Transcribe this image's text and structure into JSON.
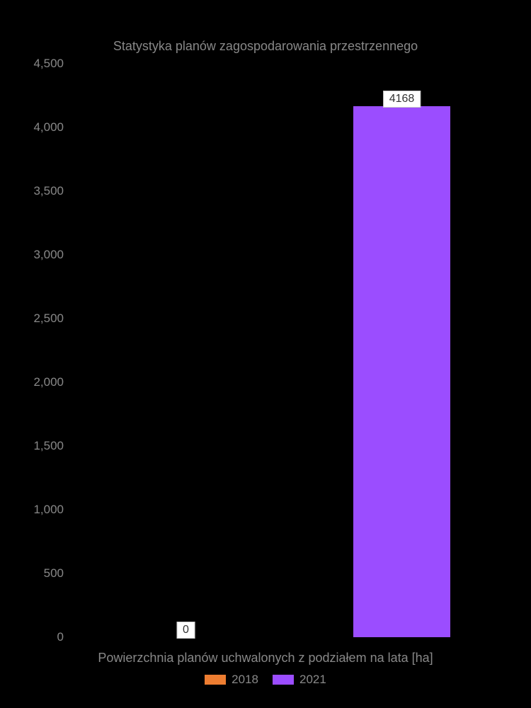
{
  "chart": {
    "type": "bar",
    "title": "Statystyka planów zagospodarowania przestrzennego",
    "title_color": "#888888",
    "title_fontsize": 18,
    "background_color": "#000000",
    "xlabel": "Powierzchnia planów uchwalonych z podziałem na lata [ha]",
    "label_color": "#888888",
    "label_fontsize": 18,
    "ylim": [
      0,
      4500
    ],
    "yticks": [
      0,
      500,
      1000,
      1500,
      2000,
      2500,
      3000,
      3500,
      4000,
      4500
    ],
    "ytick_labels": [
      "0",
      "500",
      "1,000",
      "1,500",
      "2,000",
      "2,500",
      "3,000",
      "3,500",
      "4,000",
      "4,500"
    ],
    "tick_color": "#888888",
    "tick_fontsize": 17,
    "series": [
      {
        "name": "2018",
        "color": "#ed7d31",
        "value": 0,
        "label": "0"
      },
      {
        "name": "2021",
        "color": "#9b4dff",
        "value": 4168,
        "label": "4168"
      }
    ],
    "bar_width_ratio": 0.45,
    "bar_label_bg": "#ffffff",
    "bar_label_color": "#333333",
    "bar_label_fontsize": 16,
    "legend_swatch_width": 30,
    "legend_swatch_height": 14,
    "legend_text_color": "#888888",
    "legend_fontsize": 17
  }
}
